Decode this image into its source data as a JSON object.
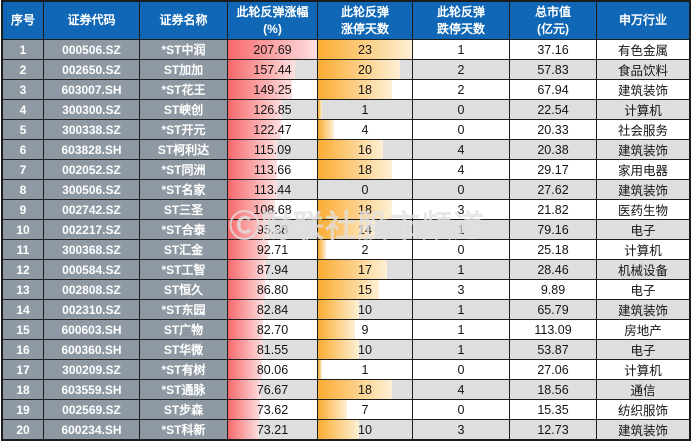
{
  "watermark": "Ⓒ财联社股市频道",
  "colors": {
    "header_bg": "#1067b6",
    "left_cell_bg": "#8f99a3",
    "row_bg": "#ffffff",
    "row_alt_bg": "#dedede",
    "grid_line": "#1c1c1c",
    "gain_bar_start": "#f8696b",
    "gain_bar_end": "#fcdfe0",
    "limitup_bar_start": "#fbac32",
    "limitup_bar_end": "#fdf0d5"
  },
  "table": {
    "headers": [
      "序号",
      "证券代码",
      "证券名称",
      "此轮反弹涨幅\n(%)",
      "此轮反弹\n涨停天数",
      "此轮反弹\n跌停天数",
      "总市值\n(亿元)",
      "申万行业"
    ]
  },
  "chart_data": {
    "type": "table",
    "columns": [
      "序号",
      "证券代码",
      "证券名称",
      "此轮反弹涨幅(%)",
      "此轮反弹涨停天数",
      "此轮反弹跌停天数",
      "总市值(亿元)",
      "申万行业"
    ],
    "bar_scale": {
      "gain_max": 207.69,
      "limit_up_max": 23
    },
    "rows": [
      {
        "no": "1",
        "code": "000506.SZ",
        "name": "*ST中润",
        "gain": "207.69",
        "limit_up": "23",
        "limit_down": "1",
        "mcap": "37.16",
        "industry": "有色金属"
      },
      {
        "no": "2",
        "code": "002650.SZ",
        "name": "ST加加",
        "gain": "157.44",
        "limit_up": "20",
        "limit_down": "2",
        "mcap": "57.83",
        "industry": "食品饮料"
      },
      {
        "no": "3",
        "code": "603007.SH",
        "name": "*ST花王",
        "gain": "149.25",
        "limit_up": "18",
        "limit_down": "2",
        "mcap": "67.94",
        "industry": "建筑装饰"
      },
      {
        "no": "4",
        "code": "300300.SZ",
        "name": "ST峡创",
        "gain": "126.85",
        "limit_up": "1",
        "limit_down": "0",
        "mcap": "22.54",
        "industry": "计算机"
      },
      {
        "no": "5",
        "code": "300338.SZ",
        "name": "*ST开元",
        "gain": "122.47",
        "limit_up": "4",
        "limit_down": "0",
        "mcap": "20.33",
        "industry": "社会服务"
      },
      {
        "no": "6",
        "code": "603828.SH",
        "name": "ST柯利达",
        "gain": "115.09",
        "limit_up": "16",
        "limit_down": "4",
        "mcap": "20.38",
        "industry": "建筑装饰"
      },
      {
        "no": "7",
        "code": "002052.SZ",
        "name": "*ST同洲",
        "gain": "113.66",
        "limit_up": "18",
        "limit_down": "4",
        "mcap": "29.17",
        "industry": "家用电器"
      },
      {
        "no": "8",
        "code": "300506.SZ",
        "name": "*ST名家",
        "gain": "113.44",
        "limit_up": "0",
        "limit_down": "0",
        "mcap": "27.62",
        "industry": "建筑装饰"
      },
      {
        "no": "9",
        "code": "002742.SZ",
        "name": "ST三圣",
        "gain": "108.68",
        "limit_up": "18",
        "limit_down": "3",
        "mcap": "21.82",
        "industry": "医药生物"
      },
      {
        "no": "10",
        "code": "002217.SZ",
        "name": "*ST合泰",
        "gain": "95.38",
        "limit_up": "14",
        "limit_down": "1",
        "mcap": "79.16",
        "industry": "电子"
      },
      {
        "no": "11",
        "code": "300368.SZ",
        "name": "ST汇金",
        "gain": "92.71",
        "limit_up": "2",
        "limit_down": "0",
        "mcap": "25.18",
        "industry": "计算机"
      },
      {
        "no": "12",
        "code": "000584.SZ",
        "name": "*ST工智",
        "gain": "87.94",
        "limit_up": "17",
        "limit_down": "1",
        "mcap": "28.46",
        "industry": "机械设备"
      },
      {
        "no": "13",
        "code": "002808.SZ",
        "name": "ST恒久",
        "gain": "86.80",
        "limit_up": "15",
        "limit_down": "3",
        "mcap": "9.89",
        "industry": "电子"
      },
      {
        "no": "14",
        "code": "002310.SZ",
        "name": "*ST东园",
        "gain": "82.84",
        "limit_up": "10",
        "limit_down": "1",
        "mcap": "65.79",
        "industry": "建筑装饰"
      },
      {
        "no": "15",
        "code": "600603.SH",
        "name": "ST广物",
        "gain": "82.70",
        "limit_up": "9",
        "limit_down": "1",
        "mcap": "113.09",
        "industry": "房地产"
      },
      {
        "no": "16",
        "code": "600360.SH",
        "name": "ST华微",
        "gain": "81.55",
        "limit_up": "10",
        "limit_down": "1",
        "mcap": "53.87",
        "industry": "电子"
      },
      {
        "no": "17",
        "code": "300209.SZ",
        "name": "*ST有树",
        "gain": "80.06",
        "limit_up": "1",
        "limit_down": "0",
        "mcap": "27.06",
        "industry": "计算机"
      },
      {
        "no": "18",
        "code": "603559.SH",
        "name": "*ST通脉",
        "gain": "76.67",
        "limit_up": "18",
        "limit_down": "4",
        "mcap": "18.56",
        "industry": "通信"
      },
      {
        "no": "19",
        "code": "002569.SZ",
        "name": "ST步森",
        "gain": "73.62",
        "limit_up": "7",
        "limit_down": "0",
        "mcap": "15.35",
        "industry": "纺织服饰"
      },
      {
        "no": "20",
        "code": "600234.SH",
        "name": "*ST科新",
        "gain": "73.21",
        "limit_up": "10",
        "limit_down": "3",
        "mcap": "12.73",
        "industry": "建筑装饰"
      }
    ]
  }
}
